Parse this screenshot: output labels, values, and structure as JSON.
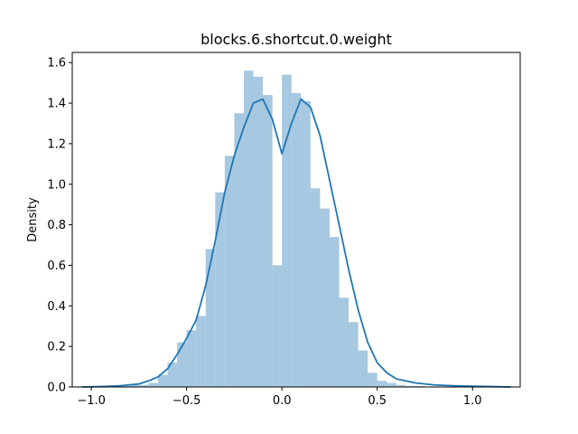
{
  "chart_data": {
    "type": "histogram",
    "title": "blocks.6.shortcut.0.weight",
    "xlabel": "",
    "ylabel": "Density",
    "xlim": [
      -1.1,
      1.25
    ],
    "ylim": [
      0,
      1.65
    ],
    "xticks": [
      -1.0,
      -0.5,
      0.0,
      0.5,
      1.0
    ],
    "xtick_labels": [
      "−1.0",
      "−0.5",
      "0.0",
      "0.5",
      "1.0"
    ],
    "yticks": [
      0.0,
      0.2,
      0.4,
      0.6,
      0.8,
      1.0,
      1.2,
      1.4,
      1.6
    ],
    "ytick_labels": [
      "0.0",
      "0.2",
      "0.4",
      "0.6",
      "0.8",
      "1.0",
      "1.2",
      "1.4",
      "1.6"
    ],
    "grid": false,
    "histogram": {
      "color": "#a6c8e0",
      "bins": [
        {
          "x0": -0.9,
          "x1": -0.85,
          "y": 0.005
        },
        {
          "x0": -0.85,
          "x1": -0.8,
          "y": 0.005
        },
        {
          "x0": -0.8,
          "x1": -0.75,
          "y": 0.01
        },
        {
          "x0": -0.75,
          "x1": -0.7,
          "y": 0.01
        },
        {
          "x0": -0.7,
          "x1": -0.65,
          "y": 0.02
        },
        {
          "x0": -0.65,
          "x1": -0.6,
          "y": 0.06
        },
        {
          "x0": -0.6,
          "x1": -0.55,
          "y": 0.12
        },
        {
          "x0": -0.55,
          "x1": -0.5,
          "y": 0.22
        },
        {
          "x0": -0.5,
          "x1": -0.45,
          "y": 0.28
        },
        {
          "x0": -0.45,
          "x1": -0.4,
          "y": 0.35
        },
        {
          "x0": -0.4,
          "x1": -0.35,
          "y": 0.68
        },
        {
          "x0": -0.35,
          "x1": -0.3,
          "y": 0.96
        },
        {
          "x0": -0.3,
          "x1": -0.25,
          "y": 1.14
        },
        {
          "x0": -0.25,
          "x1": -0.2,
          "y": 1.35
        },
        {
          "x0": -0.2,
          "x1": -0.15,
          "y": 1.56
        },
        {
          "x0": -0.15,
          "x1": -0.1,
          "y": 1.53
        },
        {
          "x0": -0.1,
          "x1": -0.05,
          "y": 1.44
        },
        {
          "x0": -0.05,
          "x1": 0.0,
          "y": 0.6
        },
        {
          "x0": 0.0,
          "x1": 0.05,
          "y": 1.54
        },
        {
          "x0": 0.05,
          "x1": 0.1,
          "y": 1.45
        },
        {
          "x0": 0.1,
          "x1": 0.15,
          "y": 1.41
        },
        {
          "x0": 0.15,
          "x1": 0.2,
          "y": 0.98
        },
        {
          "x0": 0.2,
          "x1": 0.25,
          "y": 0.88
        },
        {
          "x0": 0.25,
          "x1": 0.3,
          "y": 0.74
        },
        {
          "x0": 0.3,
          "x1": 0.35,
          "y": 0.44
        },
        {
          "x0": 0.35,
          "x1": 0.4,
          "y": 0.32
        },
        {
          "x0": 0.4,
          "x1": 0.45,
          "y": 0.18
        },
        {
          "x0": 0.45,
          "x1": 0.5,
          "y": 0.07
        },
        {
          "x0": 0.5,
          "x1": 0.55,
          "y": 0.03
        },
        {
          "x0": 0.55,
          "x1": 0.6,
          "y": 0.02
        },
        {
          "x0": 0.6,
          "x1": 0.65,
          "y": 0.01
        },
        {
          "x0": 0.65,
          "x1": 0.7,
          "y": 0.005
        },
        {
          "x0": 0.7,
          "x1": 0.75,
          "y": 0.005
        }
      ]
    },
    "kde": {
      "color": "#1f77b4",
      "x": [
        -1.05,
        -0.95,
        -0.85,
        -0.75,
        -0.7,
        -0.65,
        -0.6,
        -0.55,
        -0.5,
        -0.45,
        -0.4,
        -0.35,
        -0.3,
        -0.25,
        -0.2,
        -0.15,
        -0.1,
        -0.05,
        0.0,
        0.05,
        0.1,
        0.15,
        0.2,
        0.25,
        0.3,
        0.35,
        0.4,
        0.45,
        0.5,
        0.55,
        0.6,
        0.7,
        0.8,
        0.9,
        1.0,
        1.1,
        1.2
      ],
      "y": [
        0.0,
        0.002,
        0.006,
        0.015,
        0.03,
        0.05,
        0.09,
        0.16,
        0.24,
        0.33,
        0.5,
        0.72,
        0.96,
        1.14,
        1.28,
        1.4,
        1.42,
        1.32,
        1.15,
        1.3,
        1.42,
        1.38,
        1.24,
        1.02,
        0.8,
        0.58,
        0.38,
        0.22,
        0.12,
        0.07,
        0.04,
        0.02,
        0.01,
        0.006,
        0.004,
        0.002,
        0.0
      ]
    }
  }
}
